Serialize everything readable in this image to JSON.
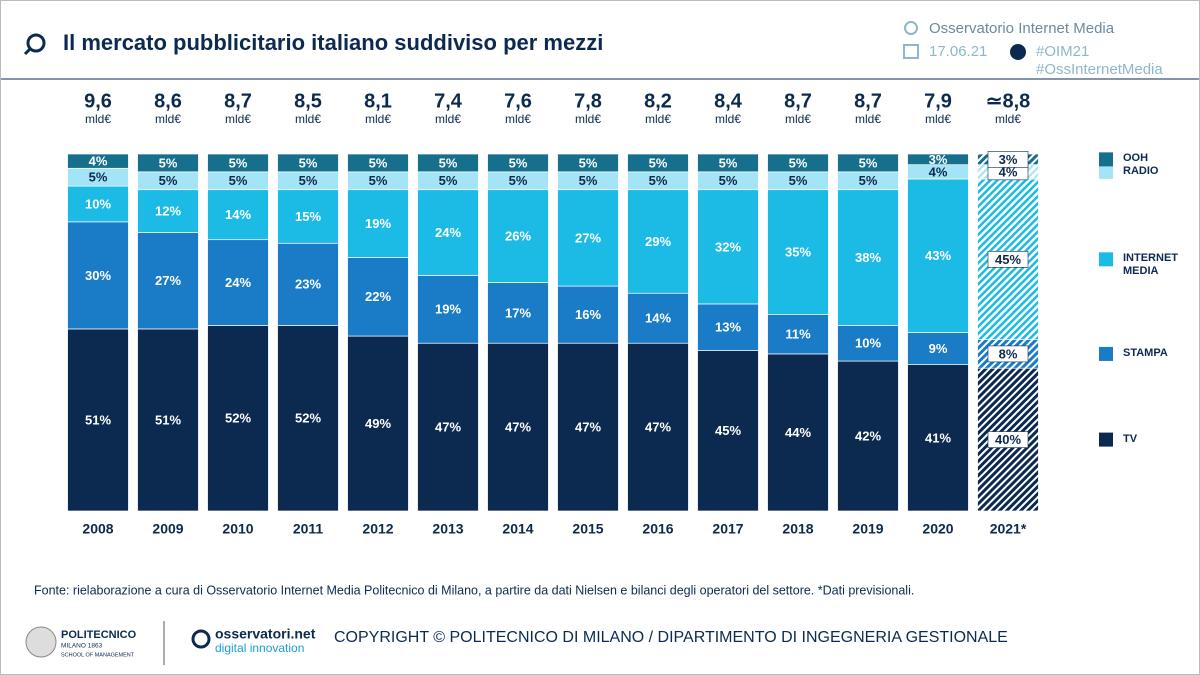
{
  "header": {
    "title": "Il mercato pubblicitario italiano suddiviso per mezzi",
    "observatory": "Osservatorio Internet Media",
    "date": "17.06.21",
    "hashtags": [
      "#OIM21",
      "#OssInternetMedia"
    ]
  },
  "chart_data": {
    "type": "stacked_bar",
    "ylim": [
      0,
      100
    ],
    "categories": [
      "2008",
      "2009",
      "2010",
      "2011",
      "2012",
      "2013",
      "2014",
      "2015",
      "2016",
      "2017",
      "2018",
      "2019",
      "2020",
      "2021*"
    ],
    "totals": {
      "values": [
        9.6,
        8.6,
        8.7,
        8.5,
        8.1,
        7.4,
        7.6,
        7.8,
        8.2,
        8.4,
        8.7,
        8.7,
        7.9,
        8.8
      ],
      "value_labels": [
        "9,6",
        "8,6",
        "8,7",
        "8,5",
        "8,1",
        "7,4",
        "7,6",
        "7,8",
        "8,2",
        "8,4",
        "8,7",
        "8,7",
        "7,9",
        "≃8,8"
      ],
      "unit": "mld€"
    },
    "series": [
      {
        "name": "TV",
        "color": "#0c2a4f",
        "values": [
          51,
          51,
          52,
          52,
          49,
          47,
          47,
          47,
          47,
          45,
          44,
          42,
          41,
          40
        ],
        "value_labels": [
          "51%",
          "51%",
          "52%",
          "52%",
          "49%",
          "47%",
          "47%",
          "47%",
          "47%",
          "45%",
          "44%",
          "42%",
          "41%",
          "40%"
        ]
      },
      {
        "name": "STAMPA",
        "color": "#1a7bc6",
        "values": [
          30,
          27,
          24,
          23,
          22,
          19,
          17,
          16,
          14,
          13,
          11,
          10,
          9,
          8
        ],
        "value_labels": [
          "30%",
          "27%",
          "24%",
          "23%",
          "22%",
          "19%",
          "17%",
          "16%",
          "14%",
          "13%",
          "11%",
          "10%",
          "9%",
          "8%"
        ]
      },
      {
        "name": "INTERNET MEDIA",
        "color": "#1bbbe6",
        "values": [
          10,
          12,
          14,
          15,
          19,
          24,
          26,
          27,
          29,
          32,
          35,
          38,
          43,
          45
        ],
        "value_labels": [
          "10%",
          "12%",
          "14%",
          "15%",
          "19%",
          "24%",
          "26%",
          "27%",
          "29%",
          "32%",
          "35%",
          "38%",
          "43%",
          "45%"
        ]
      },
      {
        "name": "RADIO",
        "color": "#a3e4f7",
        "values": [
          5,
          5,
          5,
          5,
          5,
          5,
          5,
          5,
          5,
          5,
          5,
          5,
          4,
          4
        ],
        "value_labels": [
          "5%",
          "5%",
          "5%",
          "5%",
          "5%",
          "5%",
          "5%",
          "5%",
          "5%",
          "5%",
          "5%",
          "5%",
          "4%",
          "4%"
        ]
      },
      {
        "name": "OOH",
        "color": "#176f8e",
        "values": [
          4,
          5,
          5,
          5,
          5,
          5,
          5,
          5,
          5,
          5,
          5,
          5,
          3,
          3
        ],
        "value_labels": [
          "4%",
          "5%",
          "5%",
          "5%",
          "5%",
          "5%",
          "5%",
          "5%",
          "5%",
          "5%",
          "5%",
          "5%",
          "3%",
          "3%"
        ]
      }
    ]
  },
  "footer": {
    "source": "Fonte: rielaborazione a cura di Osservatorio Internet Media Politecnico di Milano, a partire da dati Nielsen e bilanci degli operatori del settore.  *Dati previsionali.",
    "logo_name": "POLITECNICO",
    "logo_city": "MILANO 1863",
    "logo_school": "SCHOOL OF MANAGEMENT",
    "brand": "osservatori.net",
    "brand_sub": "digital innovation",
    "copyright": "COPYRIGHT © POLITECNICO DI MILANO / DIPARTIMENTO DI INGEGNERIA GESTIONALE"
  }
}
